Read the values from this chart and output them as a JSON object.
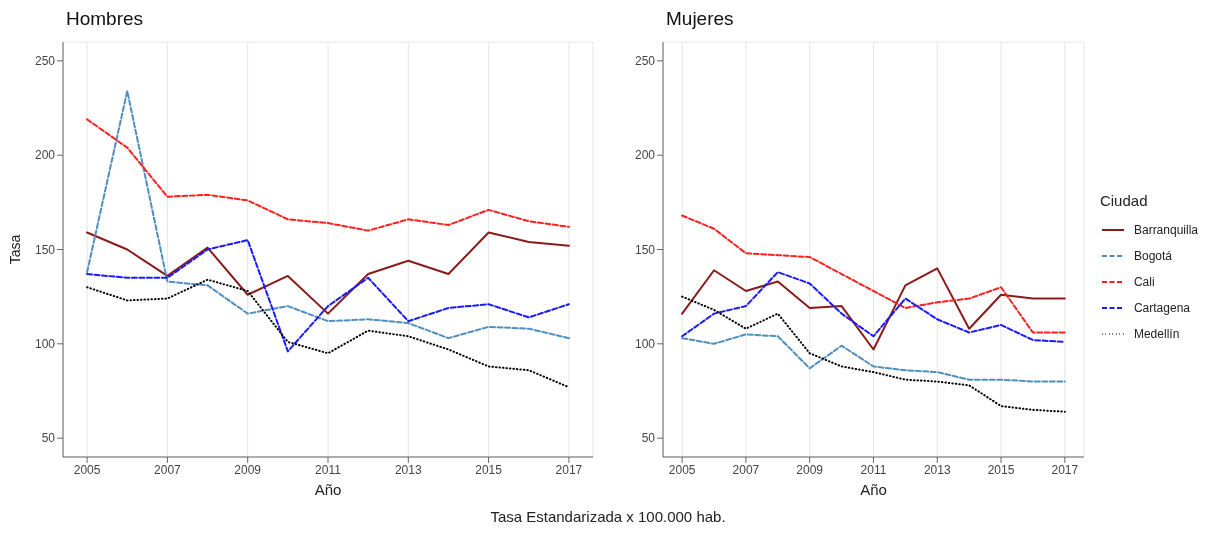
{
  "chart_data": [
    {
      "type": "line",
      "title": "Hombres",
      "xlabel": "Año",
      "ylabel": "Tasa",
      "x": [
        2005,
        2006,
        2007,
        2008,
        2009,
        2010,
        2011,
        2012,
        2013,
        2014,
        2015,
        2016,
        2017
      ],
      "xlim": [
        2004.4,
        2017.6
      ],
      "xticks": [
        2005,
        2007,
        2009,
        2011,
        2013,
        2015,
        2017
      ],
      "ylim": [
        40,
        260
      ],
      "yticks": [
        50,
        100,
        150,
        200,
        250
      ],
      "grid": true,
      "legend": false,
      "annotations": [
        "Tasa Estandarizada x 100.000 hab."
      ],
      "series": [
        {
          "color": "#8b1a1a",
          "line_style": "solid",
          "values": [
            159,
            150,
            136,
            151,
            126,
            136,
            116,
            137,
            144,
            137,
            159,
            154,
            152
          ]
        },
        {
          "color": "#4f8fbf",
          "line_style": "dashed",
          "values": [
            138,
            234,
            133,
            131,
            116,
            120,
            112,
            113,
            111,
            103,
            109,
            108,
            103
          ]
        },
        {
          "color": "#ff2020",
          "line_style": "dashed",
          "values": [
            219,
            204,
            178,
            179,
            176,
            166,
            164,
            160,
            166,
            163,
            171,
            165,
            162
          ]
        },
        {
          "color": "#1a1aff",
          "line_style": "dashed",
          "values": [
            137,
            135,
            135,
            150,
            155,
            96,
            120,
            135,
            112,
            119,
            121,
            114,
            121
          ]
        },
        {
          "color": "#000000",
          "line_style": "dotted",
          "values": [
            130,
            123,
            124,
            134,
            128,
            101,
            95,
            107,
            104,
            97,
            88,
            86,
            77
          ]
        }
      ]
    },
    {
      "type": "line",
      "title": "Mujeres",
      "xlabel": "Año",
      "legend_title": "Ciudad",
      "x": [
        2005,
        2006,
        2007,
        2008,
        2009,
        2010,
        2011,
        2012,
        2013,
        2014,
        2015,
        2016,
        2017
      ],
      "xlim": [
        2004.4,
        2017.6
      ],
      "xticks": [
        2005,
        2007,
        2009,
        2011,
        2013,
        2015,
        2017
      ],
      "ylim": [
        40,
        260
      ],
      "yticks": [
        50,
        100,
        150,
        200,
        250
      ],
      "grid": true,
      "legend": "right",
      "series": [
        {
          "name": "Barranquilla",
          "color": "#8b1a1a",
          "line_style": "solid",
          "values": [
            116,
            139,
            128,
            133,
            119,
            120,
            97,
            131,
            140,
            108,
            126,
            124,
            124
          ]
        },
        {
          "name": "Bogotá",
          "color": "#4f8fbf",
          "line_style": "dashed",
          "values": [
            103,
            100,
            105,
            104,
            87,
            99,
            88,
            86,
            85,
            81,
            81,
            80,
            80
          ]
        },
        {
          "name": "Cali",
          "color": "#ff2020",
          "line_style": "dashed",
          "values": [
            168,
            161,
            148,
            147,
            146,
            137,
            128,
            119,
            122,
            124,
            130,
            106,
            106
          ]
        },
        {
          "name": "Cartagena",
          "color": "#1a1aff",
          "line_style": "dashed",
          "values": [
            104,
            116,
            120,
            138,
            132,
            116,
            104,
            124,
            113,
            106,
            110,
            102,
            101
          ]
        },
        {
          "name": "Medellín",
          "color": "#000000",
          "line_style": "dotted",
          "values": [
            125,
            118,
            108,
            116,
            95,
            88,
            85,
            81,
            80,
            78,
            67,
            65,
            64
          ]
        }
      ]
    }
  ]
}
